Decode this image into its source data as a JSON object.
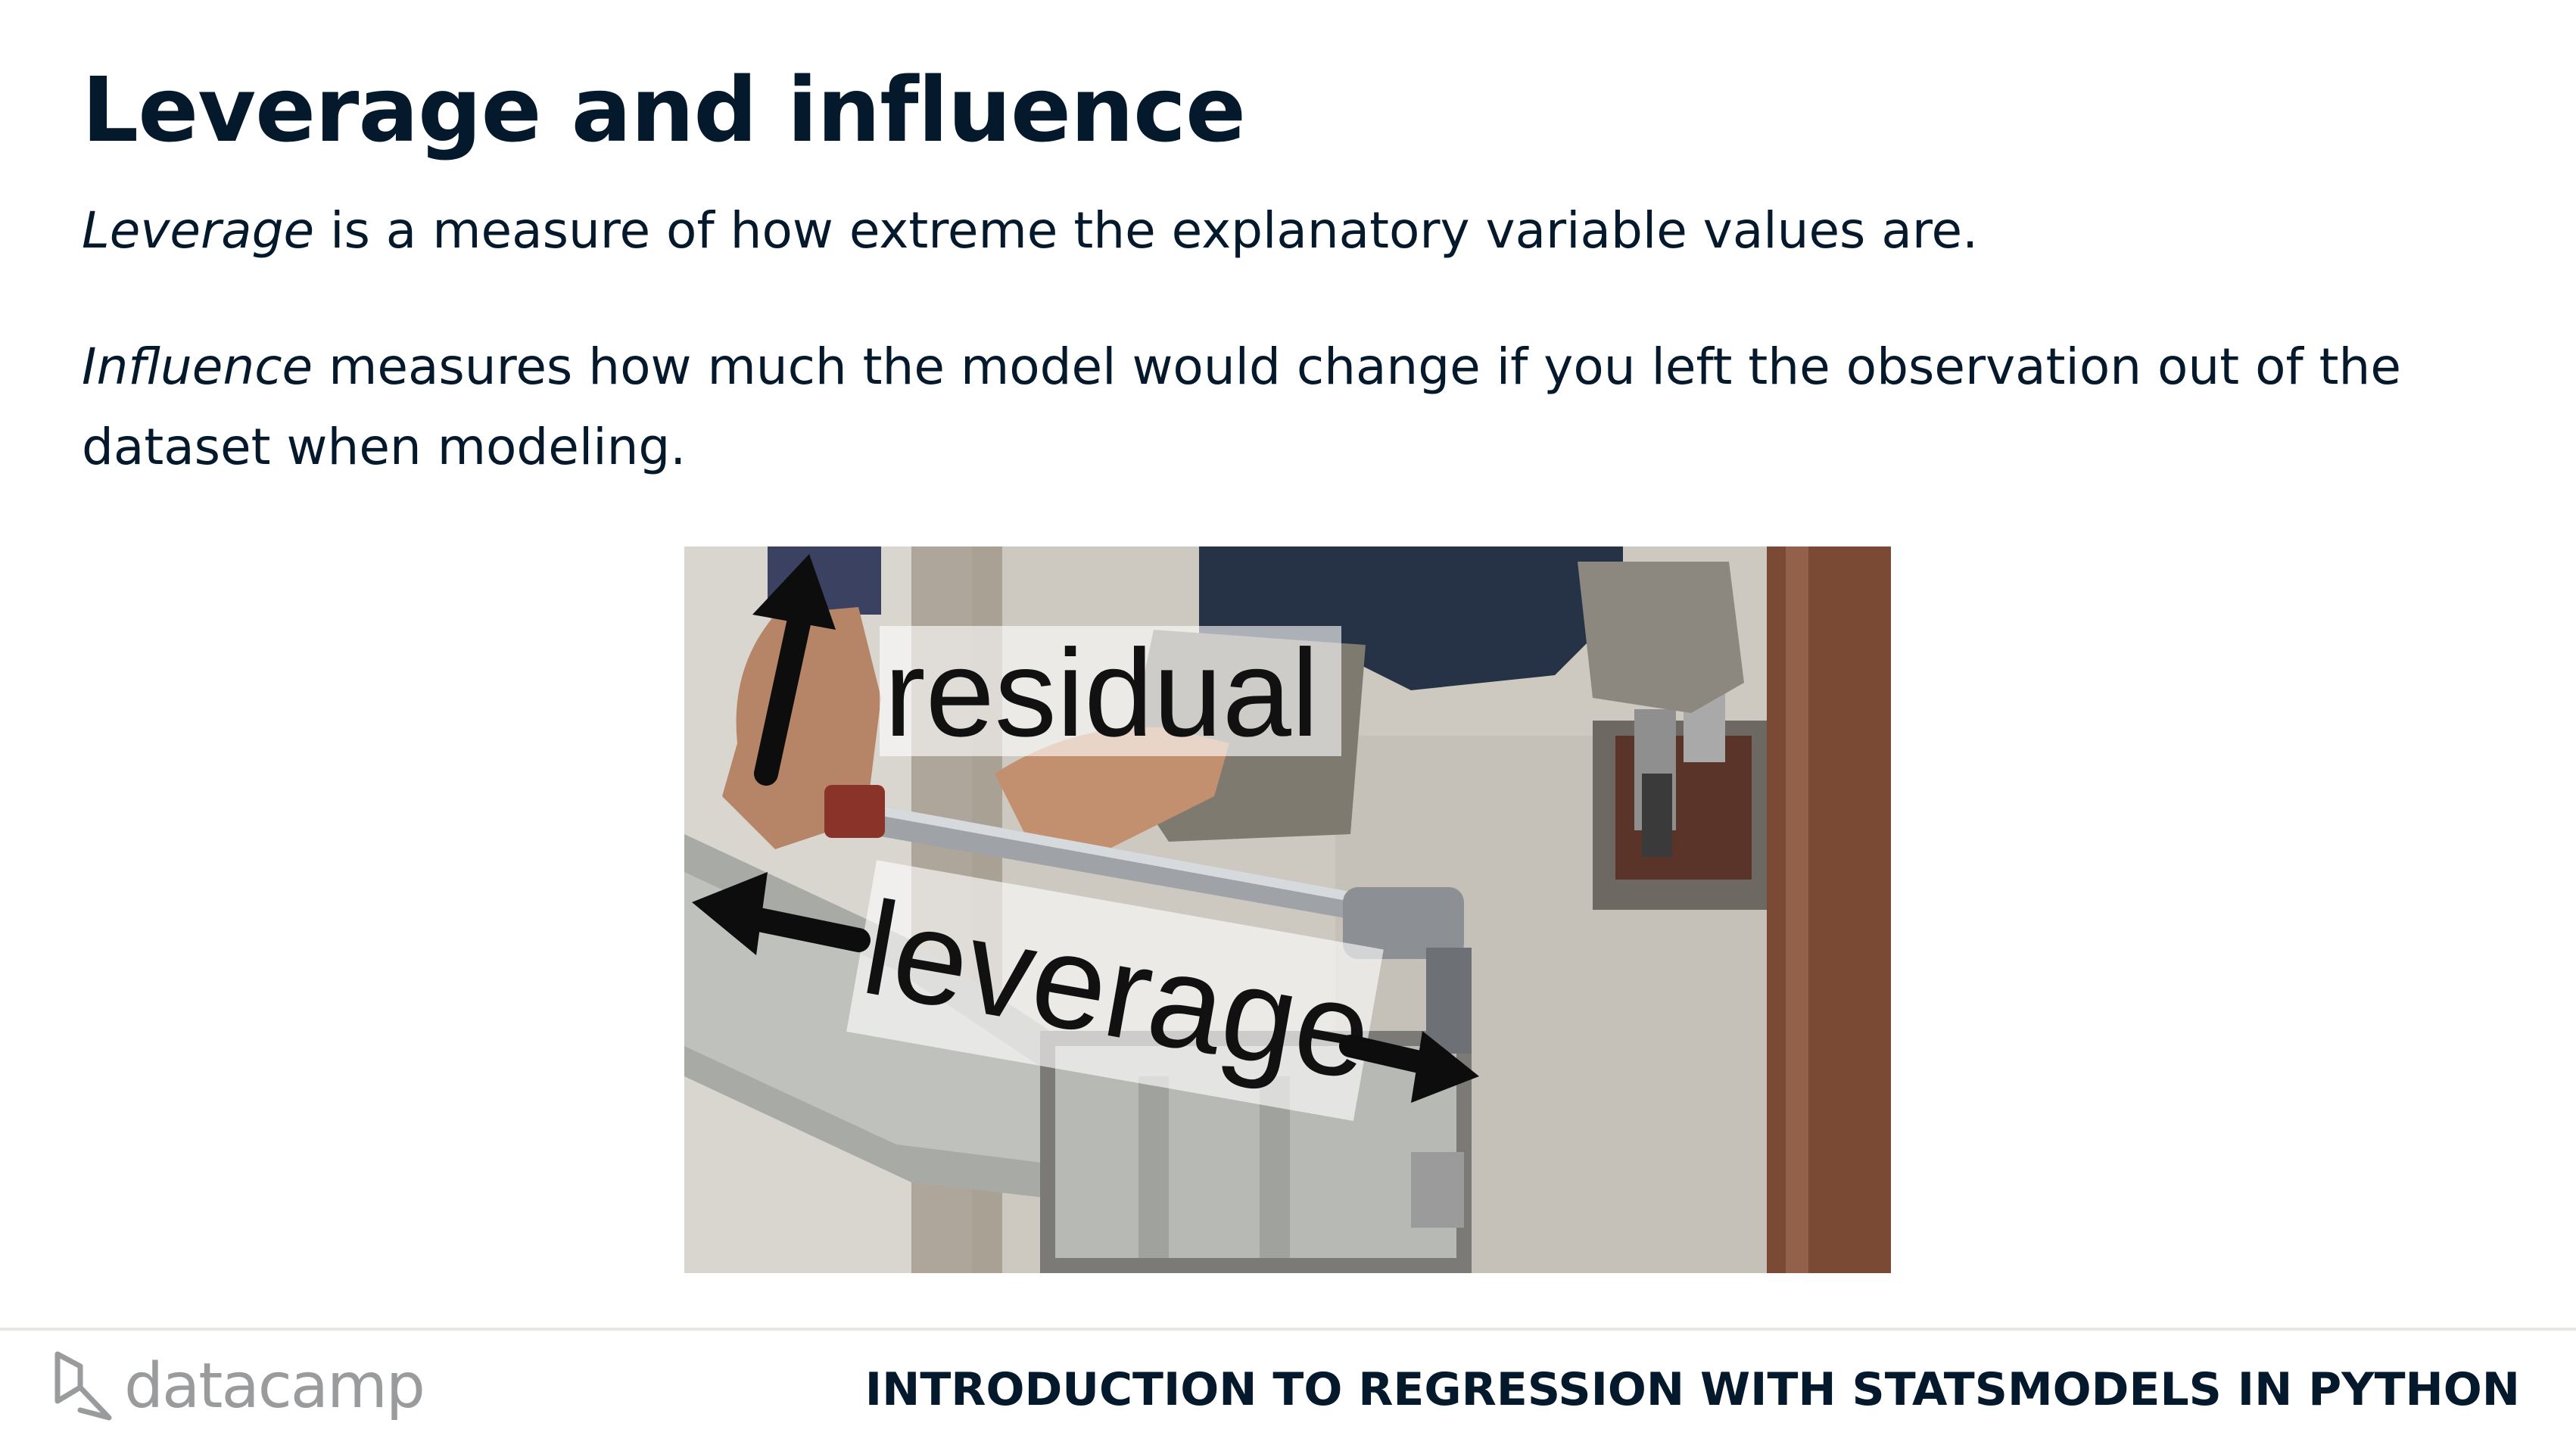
{
  "slide": {
    "title": "Leverage and influence",
    "leverage_term": "Leverage",
    "leverage_text": " is a measure of how extreme the explanatory variable values are.",
    "influence_term": "Influence",
    "influence_text": " measures how much the model would change if you left the observation out of the dataset when modeling."
  },
  "figure": {
    "label_residual": "residual",
    "label_leverage": "leverage"
  },
  "footer": {
    "brand": "datacamp",
    "course_title": "INTRODUCTION TO REGRESSION WITH STATSMODELS IN PYTHON"
  }
}
